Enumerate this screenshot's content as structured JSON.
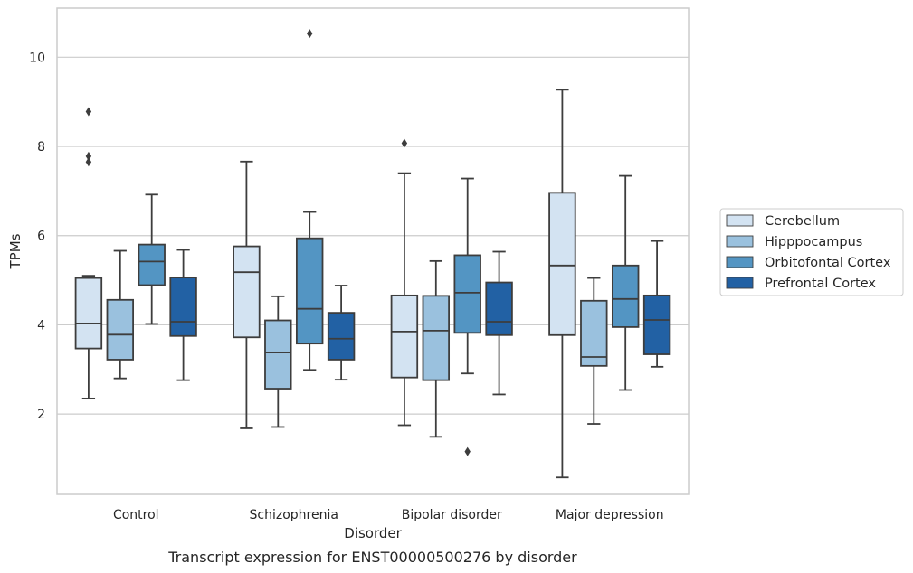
{
  "chart_data": {
    "type": "box",
    "title": "",
    "caption": "Transcript expression for ENST00000500276 by disorder",
    "xlabel": "Disorder",
    "ylabel": "TPMs",
    "ylim": [
      0.2,
      11.1
    ],
    "yticks": [
      2,
      4,
      6,
      8,
      10
    ],
    "grid": "horizontal",
    "legend_position": "right",
    "categories": [
      "Control",
      "Schizophrenia",
      "Bipolar disorder",
      "Major depression"
    ],
    "series": [
      {
        "name": "Cerebellum",
        "color": "#d3e3f2",
        "boxes": [
          {
            "whislo": 2.35,
            "q1": 3.47,
            "med": 4.03,
            "q3": 5.05,
            "whishi": 5.1,
            "fliers": [
              7.65,
              7.78,
              8.78
            ]
          },
          {
            "whislo": 1.68,
            "q1": 3.72,
            "med": 5.18,
            "q3": 5.76,
            "whishi": 7.66,
            "fliers": []
          },
          {
            "whislo": 1.75,
            "q1": 2.82,
            "med": 3.85,
            "q3": 4.66,
            "whishi": 7.4,
            "fliers": [
              8.07
            ]
          },
          {
            "whislo": 0.58,
            "q1": 3.77,
            "med": 5.33,
            "q3": 6.96,
            "whishi": 9.27,
            "fliers": []
          }
        ]
      },
      {
        "name": "Hipppocampus",
        "color": "#9ac1de",
        "boxes": [
          {
            "whislo": 2.8,
            "q1": 3.22,
            "med": 3.78,
            "q3": 4.56,
            "whishi": 5.66,
            "fliers": []
          },
          {
            "whislo": 1.71,
            "q1": 2.57,
            "med": 3.38,
            "q3": 4.1,
            "whishi": 4.64,
            "fliers": []
          },
          {
            "whislo": 1.49,
            "q1": 2.76,
            "med": 3.87,
            "q3": 4.65,
            "whishi": 5.43,
            "fliers": []
          },
          {
            "whislo": 1.78,
            "q1": 3.08,
            "med": 3.28,
            "q3": 4.54,
            "whishi": 5.05,
            "fliers": []
          }
        ]
      },
      {
        "name": "Orbitofontal Cortex",
        "color": "#5395c3",
        "boxes": [
          {
            "whislo": 4.02,
            "q1": 4.89,
            "med": 5.42,
            "q3": 5.8,
            "whishi": 6.92,
            "fliers": []
          },
          {
            "whislo": 2.99,
            "q1": 3.58,
            "med": 4.36,
            "q3": 5.94,
            "whishi": 6.53,
            "fliers": [
              10.53
            ]
          },
          {
            "whislo": 2.91,
            "q1": 3.82,
            "med": 4.72,
            "q3": 5.56,
            "whishi": 7.28,
            "fliers": [
              1.16
            ]
          },
          {
            "whislo": 2.54,
            "q1": 3.95,
            "med": 4.58,
            "q3": 5.33,
            "whishi": 7.34,
            "fliers": []
          }
        ]
      },
      {
        "name": "Prefrontal Cortex",
        "color": "#2261a4",
        "boxes": [
          {
            "whislo": 2.76,
            "q1": 3.75,
            "med": 4.07,
            "q3": 5.06,
            "whishi": 5.68,
            "fliers": []
          },
          {
            "whislo": 2.77,
            "q1": 3.22,
            "med": 3.69,
            "q3": 4.27,
            "whishi": 4.88,
            "fliers": []
          },
          {
            "whislo": 2.44,
            "q1": 3.77,
            "med": 4.07,
            "q3": 4.95,
            "whishi": 5.64,
            "fliers": []
          },
          {
            "whislo": 3.06,
            "q1": 3.34,
            "med": 4.11,
            "q3": 4.66,
            "whishi": 5.88,
            "fliers": []
          }
        ]
      }
    ]
  }
}
